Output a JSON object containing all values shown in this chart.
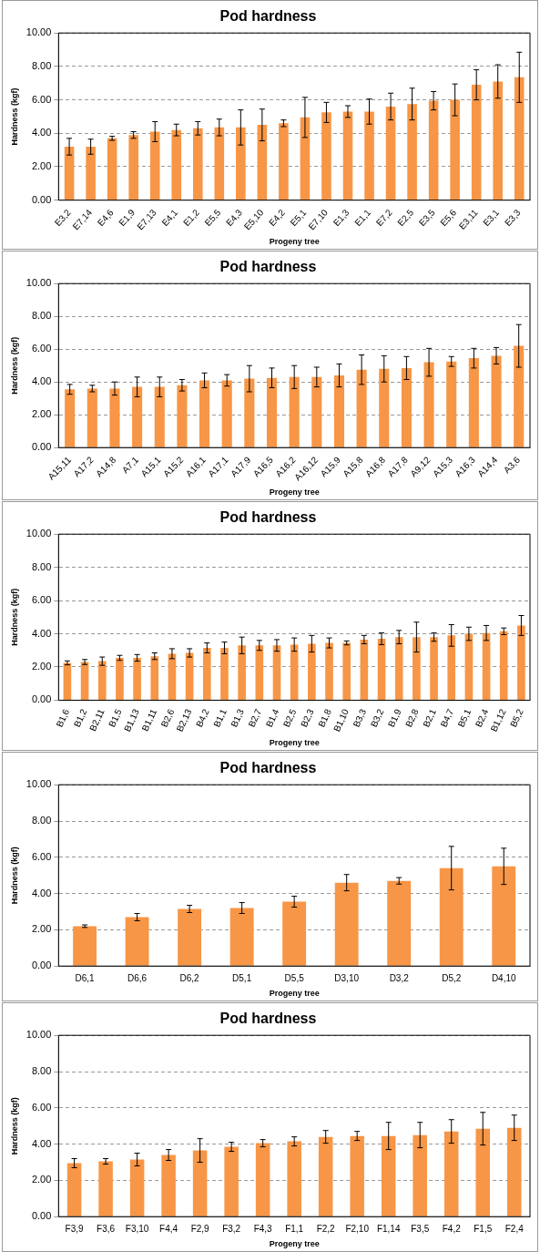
{
  "chart_data": [
    {
      "type": "bar",
      "title": "Pod hardness",
      "xlabel": "Progeny tree",
      "ylabel": "Hardness (kgf)",
      "grid": "y",
      "legend": false,
      "categories": [
        "E3,2",
        "E7,14",
        "E4,6",
        "E1,9",
        "E7,13",
        "E4,1",
        "E1,2",
        "E5,5",
        "E4,3",
        "E5,10",
        "E4,2",
        "E5,1",
        "E7,10",
        "E1,3",
        "E1,1",
        "E7,2",
        "E2,5",
        "E3,5",
        "E5,6",
        "E3,11",
        "E3,1",
        "E3,3"
      ],
      "values": [
        3.2,
        3.2,
        3.7,
        3.9,
        4.1,
        4.2,
        4.3,
        4.35,
        4.35,
        4.5,
        4.6,
        4.95,
        5.25,
        5.3,
        5.3,
        5.6,
        5.75,
        5.95,
        6.0,
        6.9,
        7.1,
        7.35
      ],
      "errors": [
        0.5,
        0.45,
        0.12,
        0.2,
        0.6,
        0.35,
        0.4,
        0.5,
        1.05,
        0.95,
        0.2,
        1.2,
        0.6,
        0.35,
        0.75,
        0.8,
        0.95,
        0.55,
        0.95,
        0.9,
        1.0,
        1.5
      ],
      "color": "#f79646",
      "ylim": [
        0,
        10
      ],
      "yticks": [
        {
          "value": 0,
          "label": "0.00"
        },
        {
          "value": 2,
          "label": "2.00"
        },
        {
          "value": 4,
          "label": "4.00"
        },
        {
          "value": 6,
          "label": "6.00"
        },
        {
          "value": 8,
          "label": "8.00"
        },
        {
          "value": 10,
          "label": "10.00"
        }
      ]
    },
    {
      "type": "bar",
      "title": "Pod hardness",
      "xlabel": "Progeny tree",
      "ylabel": "Hardness (kgf)",
      "grid": "y",
      "legend": false,
      "categories": [
        "A15,11",
        "A17,2",
        "A14,8",
        "A7,1",
        "A15,1",
        "A15,2",
        "A16,1",
        "A17,1",
        "A17,9",
        "A16,5",
        "A16,2",
        "A16,12",
        "A15,9",
        "A15,8",
        "A16,8",
        "A17,8",
        "A9,12",
        "A15,3",
        "A16,3",
        "A14,4",
        "A3,6"
      ],
      "values": [
        3.55,
        3.6,
        3.6,
        3.7,
        3.7,
        3.8,
        4.1,
        4.1,
        4.2,
        4.25,
        4.3,
        4.3,
        4.4,
        4.75,
        4.8,
        4.85,
        5.2,
        5.25,
        5.45,
        5.6,
        6.2
      ],
      "errors": [
        0.3,
        0.2,
        0.4,
        0.6,
        0.6,
        0.35,
        0.45,
        0.35,
        0.8,
        0.6,
        0.7,
        0.6,
        0.7,
        0.9,
        0.8,
        0.7,
        0.85,
        0.3,
        0.6,
        0.5,
        1.3
      ],
      "color": "#f79646",
      "ylim": [
        0,
        10
      ],
      "yticks": [
        {
          "value": 0,
          "label": "0.00"
        },
        {
          "value": 2,
          "label": "2.00"
        },
        {
          "value": 4,
          "label": "4.00"
        },
        {
          "value": 6,
          "label": "6.00"
        },
        {
          "value": 8,
          "label": "8.00"
        },
        {
          "value": 10,
          "label": "10.00"
        }
      ]
    },
    {
      "type": "bar",
      "title": "Pod hardness",
      "xlabel": "Progeny tree",
      "ylabel": "Hardness (kgf)",
      "grid": "y",
      "legend": false,
      "categories": [
        "B1,6",
        "B1,2",
        "B2,11",
        "B1,5",
        "B1,13",
        "B1,11",
        "B2,6",
        "B2,13",
        "B4,2",
        "B1,1",
        "B1,3",
        "B2,7",
        "B1,4",
        "B2,5",
        "B2,3",
        "B1,8",
        "B1,10",
        "B3,3",
        "B3,2",
        "B1,9",
        "B2,8",
        "B2,1",
        "B4,7",
        "B5,1",
        "B2,4",
        "B1,12",
        "B5,2"
      ],
      "values": [
        2.25,
        2.3,
        2.35,
        2.55,
        2.55,
        2.65,
        2.8,
        2.85,
        3.15,
        3.15,
        3.3,
        3.3,
        3.3,
        3.35,
        3.4,
        3.45,
        3.45,
        3.65,
        3.7,
        3.8,
        3.8,
        3.8,
        3.9,
        4.0,
        4.05,
        4.15,
        4.5
      ],
      "errors": [
        0.12,
        0.15,
        0.25,
        0.15,
        0.2,
        0.2,
        0.3,
        0.25,
        0.3,
        0.35,
        0.5,
        0.3,
        0.35,
        0.4,
        0.5,
        0.3,
        0.12,
        0.25,
        0.35,
        0.4,
        0.9,
        0.25,
        0.65,
        0.4,
        0.45,
        0.2,
        0.6
      ],
      "color": "#f79646",
      "ylim": [
        0,
        10
      ],
      "yticks": [
        {
          "value": 0,
          "label": "0.00"
        },
        {
          "value": 2,
          "label": "2.00"
        },
        {
          "value": 4,
          "label": "4.00"
        },
        {
          "value": 6,
          "label": "6.00"
        },
        {
          "value": 8,
          "label": "8.00"
        },
        {
          "value": 10,
          "label": "10.00"
        }
      ]
    },
    {
      "type": "bar",
      "title": "Pod hardness",
      "xlabel": "Progeny tree",
      "ylabel": "Hardness (kgf)",
      "grid": "y",
      "legend": false,
      "categories": [
        "D6,1",
        "D6,6",
        "D6,2",
        "D5,1",
        "D5,5",
        "D3,10",
        "D3,2",
        "D5,2",
        "D4,10"
      ],
      "values": [
        2.2,
        2.7,
        3.15,
        3.2,
        3.55,
        4.6,
        4.7,
        5.4,
        5.5
      ],
      "errors": [
        0.07,
        0.2,
        0.2,
        0.3,
        0.3,
        0.45,
        0.18,
        1.2,
        1.0
      ],
      "color": "#f79646",
      "ylim": [
        0,
        10
      ],
      "yticks": [
        {
          "value": 0,
          "label": "0.00"
        },
        {
          "value": 2,
          "label": "2.00"
        },
        {
          "value": 4,
          "label": "4.00"
        },
        {
          "value": 6,
          "label": "6.00"
        },
        {
          "value": 8,
          "label": "8.00"
        },
        {
          "value": 10,
          "label": "10.00"
        }
      ]
    },
    {
      "type": "bar",
      "title": "Pod hardness",
      "xlabel": "Progeny tree",
      "ylabel": "Hardness (kgf)",
      "grid": "y",
      "legend": false,
      "categories": [
        "F3,9",
        "F3,6",
        "F3,10",
        "F4,4",
        "F2,9",
        "F3,2",
        "F4,3",
        "F1,1",
        "F2,2",
        "F2,10",
        "F1,14",
        "F3,5",
        "F4,2",
        "F1,5",
        "F2,4"
      ],
      "values": [
        2.95,
        3.05,
        3.15,
        3.4,
        3.65,
        3.85,
        4.05,
        4.15,
        4.4,
        4.45,
        4.45,
        4.5,
        4.7,
        4.85,
        4.9
      ],
      "errors": [
        0.25,
        0.15,
        0.35,
        0.3,
        0.65,
        0.25,
        0.2,
        0.25,
        0.35,
        0.25,
        0.75,
        0.7,
        0.65,
        0.9,
        0.7
      ],
      "color": "#f79646",
      "ylim": [
        0,
        10
      ],
      "yticks": [
        {
          "value": 0,
          "label": "0.00"
        },
        {
          "value": 2,
          "label": "2.00"
        },
        {
          "value": 4,
          "label": "4.00"
        },
        {
          "value": 6,
          "label": "6.00"
        },
        {
          "value": 8,
          "label": "8.00"
        },
        {
          "value": 10,
          "label": "10.00"
        }
      ]
    }
  ]
}
